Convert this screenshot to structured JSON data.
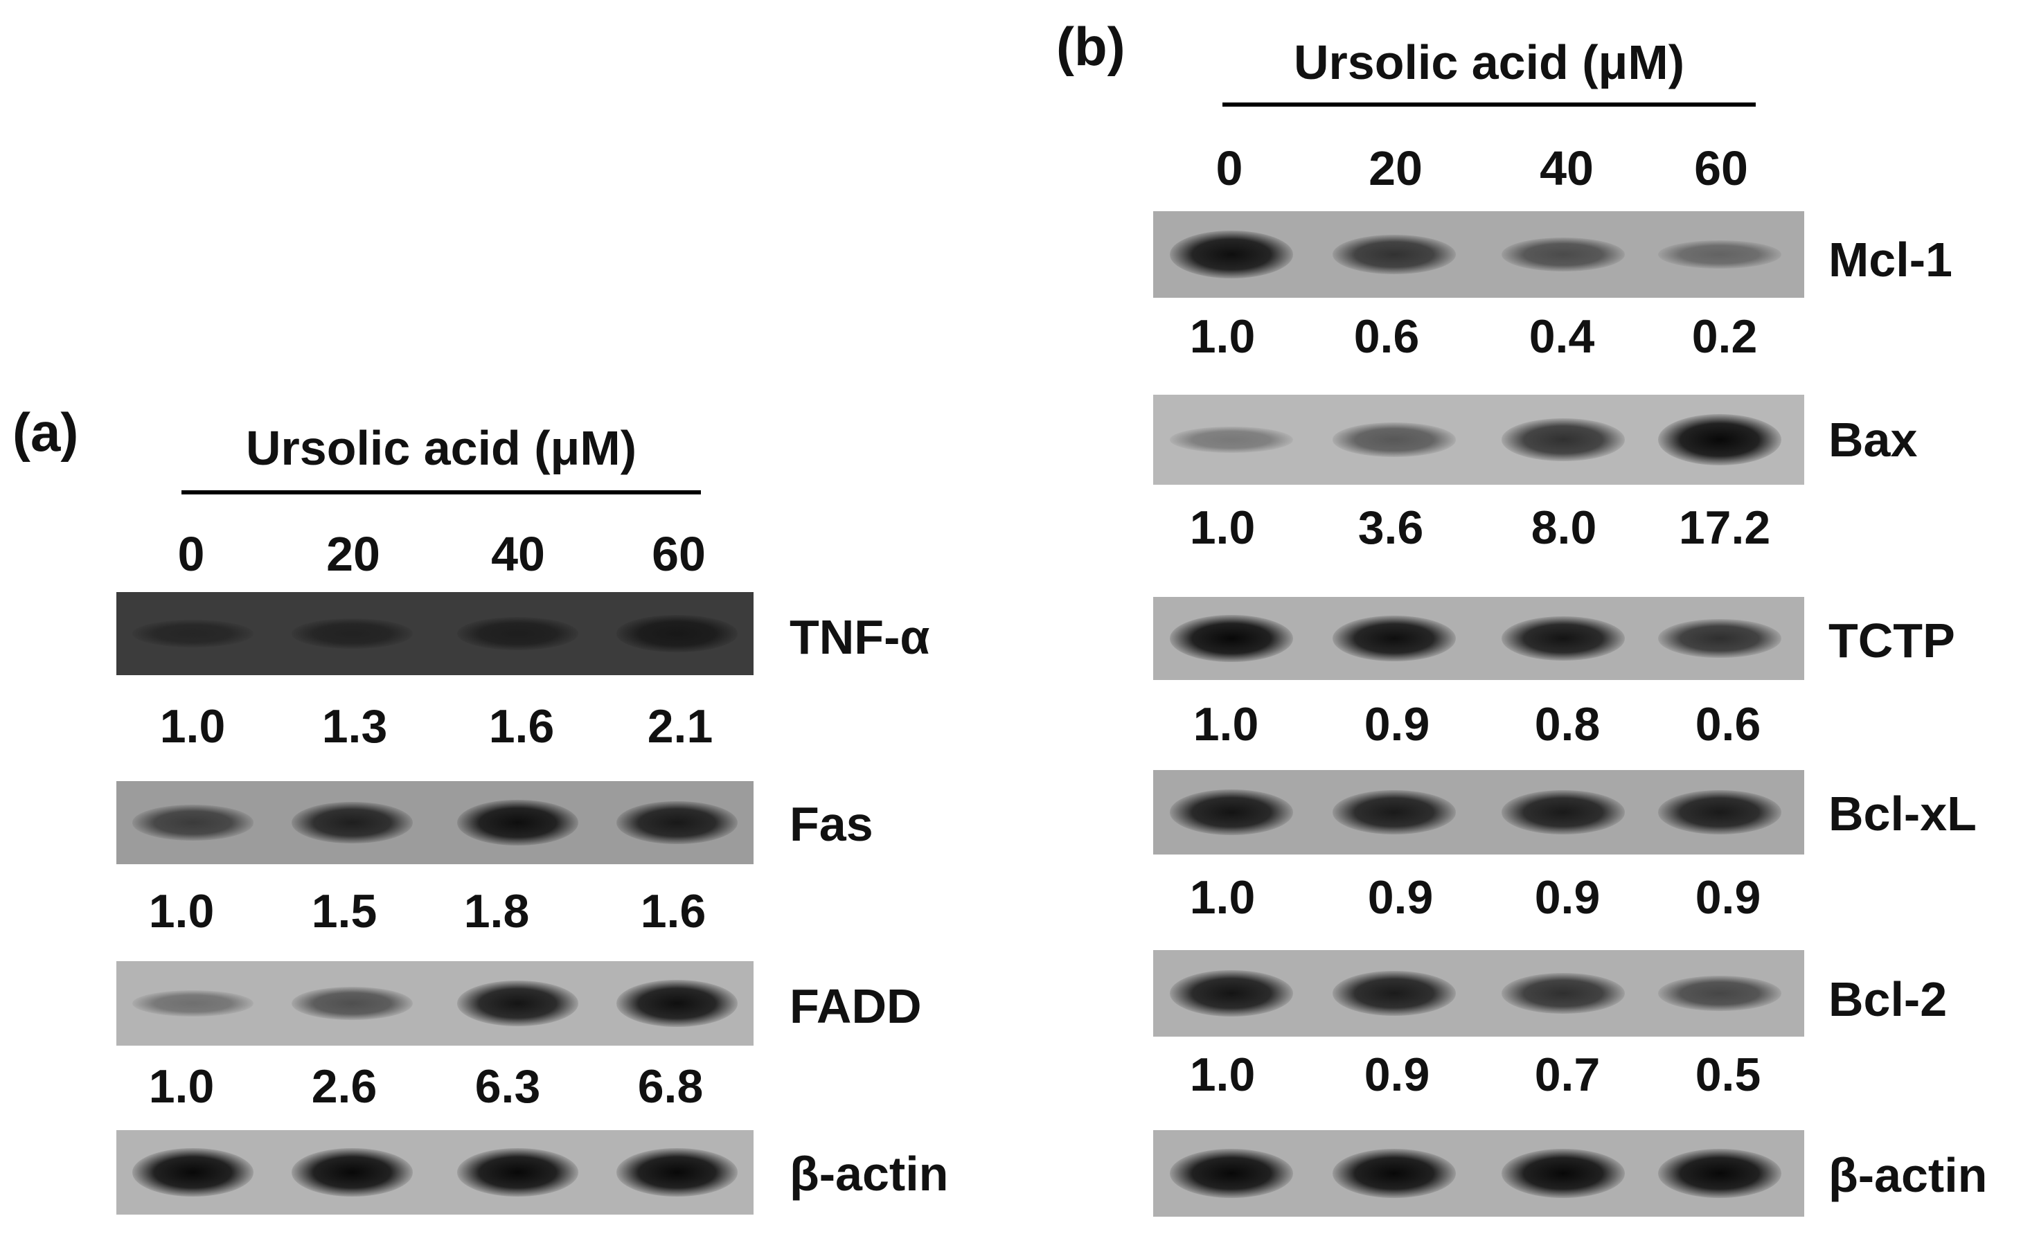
{
  "figure": {
    "panels": [
      {
        "id": "a",
        "letter": "(a)",
        "treatment_title": "Ursolic acid (μM)",
        "doses": [
          "0",
          "20",
          "40",
          "60"
        ],
        "blots": [
          {
            "protein": "TNF-α",
            "values": [
              "1.0",
              "1.3",
              "1.6",
              "2.1"
            ],
            "band_intensity": [
              0.25,
              0.35,
              0.45,
              0.6
            ],
            "background": "#3c3c3c"
          },
          {
            "protein": "Fas",
            "values": [
              "1.0",
              "1.5",
              "1.8",
              "1.6"
            ],
            "band_intensity": [
              0.55,
              0.8,
              0.95,
              0.85
            ],
            "background": "#9c9c9c"
          },
          {
            "protein": "FADD",
            "values": [
              "1.0",
              "2.6",
              "6.3",
              "6.8"
            ],
            "band_intensity": [
              0.2,
              0.45,
              0.9,
              0.95
            ],
            "background": "#b4b4b4"
          },
          {
            "protein": "β-actin",
            "values": [],
            "band_intensity": [
              1,
              1,
              1,
              1
            ],
            "background": "#b4b4b4"
          }
        ]
      },
      {
        "id": "b",
        "letter": "(b)",
        "treatment_title": "Ursolic acid (μM)",
        "doses": [
          "0",
          "20",
          "40",
          "60"
        ],
        "blots": [
          {
            "protein": "Mcl-1",
            "values": [
              "1.0",
              "0.6",
              "0.4",
              "0.2"
            ],
            "band_intensity": [
              0.95,
              0.65,
              0.45,
              0.25
            ],
            "background": "#aaaaaa"
          },
          {
            "protein": "Bax",
            "values": [
              "1.0",
              "3.6",
              "8.0",
              "17.2"
            ],
            "band_intensity": [
              0.15,
              0.4,
              0.7,
              1.0
            ],
            "background": "#b8b8b8"
          },
          {
            "protein": "TCTP",
            "values": [
              "1.0",
              "0.9",
              "0.8",
              "0.6"
            ],
            "band_intensity": [
              1,
              0.95,
              0.9,
              0.7
            ],
            "background": "#b0b0b0"
          },
          {
            "protein": "Bcl-xL",
            "values": [
              "1.0",
              "0.9",
              "0.9",
              "0.9"
            ],
            "band_intensity": [
              0.9,
              0.85,
              0.85,
              0.85
            ],
            "background": "#a8a8a8"
          },
          {
            "protein": "Bcl-2",
            "values": [
              "1.0",
              "0.9",
              "0.7",
              "0.5"
            ],
            "band_intensity": [
              0.9,
              0.85,
              0.7,
              0.5
            ],
            "background": "#b0b0b0"
          },
          {
            "protein": "β-actin",
            "values": [],
            "band_intensity": [
              1,
              1,
              1,
              1
            ],
            "background": "#b0b0b0"
          }
        ]
      }
    ]
  }
}
